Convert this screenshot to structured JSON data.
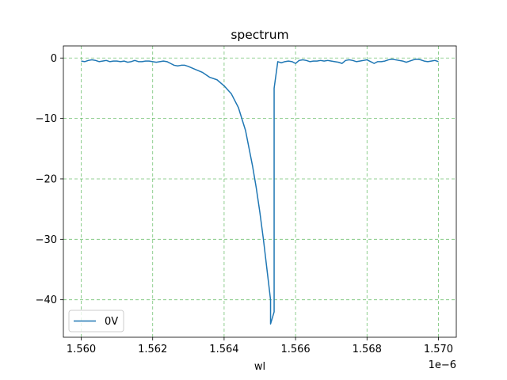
{
  "chart_data": {
    "type": "line",
    "title": "spectrum",
    "xlabel": "wl",
    "ylabel": "",
    "x_offset_label": "1e−6",
    "xlim": [
      1.5595,
      1.5705
    ],
    "ylim": [
      -46.2,
      2.0
    ],
    "x_ticks": [
      1.56,
      1.562,
      1.564,
      1.566,
      1.568,
      1.57
    ],
    "x_tick_labels": [
      "1.560",
      "1.562",
      "1.564",
      "1.566",
      "1.568",
      "1.570"
    ],
    "y_ticks": [
      0,
      -10,
      -20,
      -30,
      -40
    ],
    "y_tick_labels": [
      "0",
      "−10",
      "−20",
      "−30",
      "−40"
    ],
    "grid": true,
    "grid_color": "#5cb85c",
    "legend_position": "lower-left",
    "series": [
      {
        "name": "0V",
        "color": "#1f77b4",
        "x": [
          1.56,
          1.5601,
          1.5602,
          1.5603,
          1.5604,
          1.5605,
          1.5606,
          1.5607,
          1.5608,
          1.5609,
          1.561,
          1.5611,
          1.5612,
          1.5613,
          1.5614,
          1.5615,
          1.5616,
          1.5617,
          1.5618,
          1.5619,
          1.562,
          1.5621,
          1.5622,
          1.5623,
          1.5624,
          1.5625,
          1.5626,
          1.5627,
          1.5628,
          1.5629,
          1.563,
          1.5632,
          1.5634,
          1.5636,
          1.5638,
          1.564,
          1.5642,
          1.5644,
          1.5646,
          1.5647,
          1.5648,
          1.5649,
          1.565,
          1.5651,
          1.5652,
          1.5653,
          1.5653,
          1.5654,
          1.5654,
          1.5654,
          1.5654,
          1.5655,
          1.5655,
          1.5656,
          1.5657,
          1.5658,
          1.5659,
          1.566,
          1.5661,
          1.5662,
          1.5663,
          1.5664,
          1.5665,
          1.5666,
          1.5667,
          1.5668,
          1.5669,
          1.567,
          1.5671,
          1.5672,
          1.5673,
          1.5674,
          1.5675,
          1.5676,
          1.5677,
          1.5678,
          1.5679,
          1.568,
          1.5681,
          1.5682,
          1.5683,
          1.5684,
          1.5685,
          1.5686,
          1.5687,
          1.5688,
          1.5689,
          1.569,
          1.5691,
          1.5692,
          1.5693,
          1.5694,
          1.5695,
          1.5696,
          1.5697,
          1.5698,
          1.5699,
          1.57
        ],
        "y": [
          -0.5,
          -0.6,
          -0.4,
          -0.3,
          -0.4,
          -0.6,
          -0.5,
          -0.4,
          -0.6,
          -0.5,
          -0.5,
          -0.6,
          -0.5,
          -0.7,
          -0.6,
          -0.4,
          -0.6,
          -0.6,
          -0.5,
          -0.5,
          -0.6,
          -0.7,
          -0.6,
          -0.5,
          -0.6,
          -0.9,
          -1.2,
          -1.3,
          -1.2,
          -1.2,
          -1.4,
          -1.9,
          -2.4,
          -3.2,
          -3.6,
          -4.6,
          -5.9,
          -8.2,
          -12.0,
          -15.0,
          -18.0,
          -21.5,
          -25.5,
          -30.0,
          -35.0,
          -40.0,
          -44.0,
          -42.0,
          -30.0,
          -15.0,
          -5.0,
          -0.7,
          -0.6,
          -0.8,
          -0.6,
          -0.5,
          -0.6,
          -0.9,
          -0.4,
          -0.3,
          -0.4,
          -0.6,
          -0.5,
          -0.5,
          -0.4,
          -0.5,
          -0.4,
          -0.5,
          -0.6,
          -0.7,
          -0.9,
          -0.4,
          -0.3,
          -0.4,
          -0.6,
          -0.5,
          -0.4,
          -0.3,
          -0.6,
          -0.9,
          -0.6,
          -0.6,
          -0.5,
          -0.3,
          -0.2,
          -0.3,
          -0.4,
          -0.5,
          -0.7,
          -0.5,
          -0.3,
          -0.2,
          -0.3,
          -0.5,
          -0.6,
          -0.5,
          -0.4,
          -0.6
        ]
      }
    ]
  }
}
